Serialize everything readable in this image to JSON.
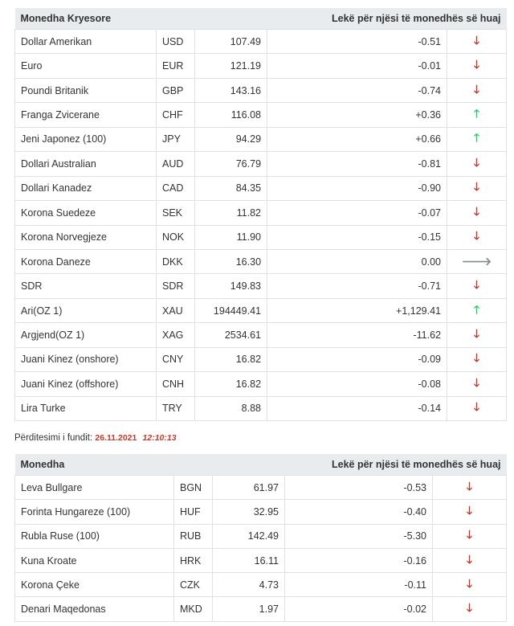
{
  "table1": {
    "header_name": "Monedha Kryesore",
    "header_rate": "Lekë për njësi të monedhës së huaj",
    "rows": [
      {
        "name": "Dollar Amerikan",
        "code": "USD",
        "value": "107.49",
        "change": "-0.51",
        "dir": "down"
      },
      {
        "name": "Euro",
        "code": "EUR",
        "value": "121.19",
        "change": "-0.01",
        "dir": "down"
      },
      {
        "name": "Poundi Britanik",
        "code": "GBP",
        "value": "143.16",
        "change": "-0.74",
        "dir": "down"
      },
      {
        "name": "Franga Zvicerane",
        "code": "CHF",
        "value": "116.08",
        "change": "+0.36",
        "dir": "up"
      },
      {
        "name": "Jeni Japonez (100)",
        "code": "JPY",
        "value": "94.29",
        "change": "+0.66",
        "dir": "up"
      },
      {
        "name": "Dollari Australian",
        "code": "AUD",
        "value": "76.79",
        "change": "-0.81",
        "dir": "down"
      },
      {
        "name": "Dollari Kanadez",
        "code": "CAD",
        "value": "84.35",
        "change": "-0.90",
        "dir": "down"
      },
      {
        "name": "Korona Suedeze",
        "code": "SEK",
        "value": "11.82",
        "change": "-0.07",
        "dir": "down"
      },
      {
        "name": "Korona Norvegjeze",
        "code": "NOK",
        "value": "11.90",
        "change": "-0.15",
        "dir": "down"
      },
      {
        "name": "Korona Daneze",
        "code": "DKK",
        "value": "16.30",
        "change": "0.00",
        "dir": "flat"
      },
      {
        "name": "SDR",
        "code": "SDR",
        "value": "149.83",
        "change": "-0.71",
        "dir": "down"
      },
      {
        "name": "Ari(OZ 1)",
        "code": "XAU",
        "value": "194449.41",
        "change": "+1,129.41",
        "dir": "up"
      },
      {
        "name": "Argjend(OZ 1)",
        "code": "XAG",
        "value": "2534.61",
        "change": "-11.62",
        "dir": "down"
      },
      {
        "name": "Juani Kinez (onshore)",
        "code": "CNY",
        "value": "16.82",
        "change": "-0.09",
        "dir": "down"
      },
      {
        "name": "Juani Kinez (offshore)",
        "code": "CNH",
        "value": "16.82",
        "change": "-0.08",
        "dir": "down"
      },
      {
        "name": "Lira Turke",
        "code": "TRY",
        "value": "8.88",
        "change": "-0.14",
        "dir": "down"
      }
    ]
  },
  "update": {
    "label": "Përditesimi i fundit:",
    "date": "26.11.2021",
    "time": "12:10:13"
  },
  "table2": {
    "header_name": "Monedha",
    "header_rate": "Lekë për njësi të monedhës së huaj",
    "rows": [
      {
        "name": "Leva Bullgare",
        "code": "BGN",
        "value": "61.97",
        "change": "-0.53",
        "dir": "down"
      },
      {
        "name": "Forinta Hungareze (100)",
        "code": "HUF",
        "value": "32.95",
        "change": "-0.40",
        "dir": "down"
      },
      {
        "name": "Rubla Ruse (100)",
        "code": "RUB",
        "value": "142.49",
        "change": "-5.30",
        "dir": "down"
      },
      {
        "name": "Kuna Kroate",
        "code": "HRK",
        "value": "16.11",
        "change": "-0.16",
        "dir": "down"
      },
      {
        "name": "Korona Çeke",
        "code": "CZK",
        "value": "4.73",
        "change": "-0.11",
        "dir": "down"
      },
      {
        "name": "Denari Maqedonas",
        "code": "MKD",
        "value": "1.97",
        "change": "-0.02",
        "dir": "down"
      }
    ]
  },
  "arrows": {
    "down": "🡓",
    "up": "🡑",
    "flat": "🡒"
  },
  "colors": {
    "down": "#c0392b",
    "up": "#2ecc71",
    "flat": "#7f8c8d",
    "header_bg": "#e9ecef"
  }
}
